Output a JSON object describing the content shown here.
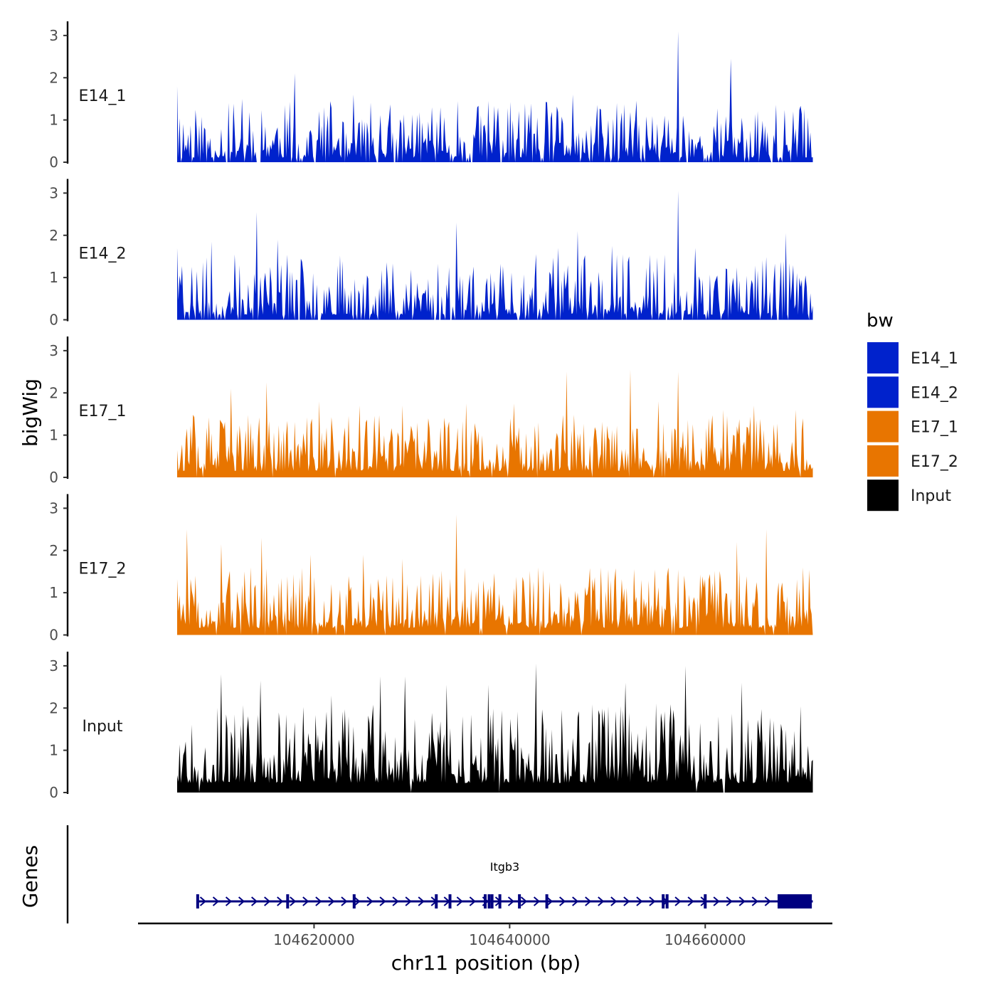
{
  "chart_data": {
    "type": "area",
    "y_axis_title": "bigWig",
    "x_axis_title": "chr11 position (bp)",
    "genes_axis_title": "Genes",
    "xlim": [
      104602000,
      104673000
    ],
    "data_range": [
      104606000,
      104671000
    ],
    "x_ticks": [
      104620000,
      104640000,
      104660000
    ],
    "x_tick_labels": [
      "104620000",
      "104640000",
      "104660000"
    ],
    "ylim": [
      0,
      3.2
    ],
    "y_ticks": [
      0,
      1,
      2,
      3
    ],
    "y_tick_labels": [
      "0",
      "1",
      "2",
      "3"
    ],
    "legend": {
      "title": "bw",
      "entries": [
        {
          "label": "E14_1",
          "color": "#0022cc"
        },
        {
          "label": "E14_2",
          "color": "#0022cc"
        },
        {
          "label": "E17_1",
          "color": "#e87500"
        },
        {
          "label": "E17_2",
          "color": "#e87500"
        },
        {
          "label": "Input",
          "color": "#000000"
        }
      ]
    },
    "tracks": [
      {
        "name": "E14_1",
        "color": "#0022cc",
        "seed": 11,
        "base": 0.35,
        "noise": 0.75,
        "zero_prob": 0.16,
        "peaks": [
          [
            104606000,
            1.8
          ],
          [
            104612700,
            1.5
          ],
          [
            104618000,
            2.1
          ],
          [
            104624000,
            1.6
          ],
          [
            104632000,
            1.3
          ],
          [
            104637800,
            1.45
          ],
          [
            104646500,
            1.6
          ],
          [
            104651000,
            1.4
          ],
          [
            104657200,
            3.1
          ],
          [
            104662600,
            2.45
          ],
          [
            104669000,
            1.2
          ]
        ]
      },
      {
        "name": "E14_2",
        "color": "#0022cc",
        "seed": 23,
        "base": 0.4,
        "noise": 0.8,
        "zero_prob": 0.15,
        "peaks": [
          [
            104606000,
            1.7
          ],
          [
            104609500,
            1.85
          ],
          [
            104614200,
            2.55
          ],
          [
            104616300,
            1.9
          ],
          [
            104634500,
            2.3
          ],
          [
            104645000,
            1.7
          ],
          [
            104647000,
            2.1
          ],
          [
            104650400,
            1.75
          ],
          [
            104657200,
            3.05
          ],
          [
            104659000,
            1.7
          ],
          [
            104668300,
            2.05
          ]
        ]
      },
      {
        "name": "E17_1",
        "color": "#e87500",
        "seed": 37,
        "base": 0.5,
        "noise": 0.75,
        "zero_prob": 0.03,
        "peaks": [
          [
            104611500,
            2.1
          ],
          [
            104615200,
            2.25
          ],
          [
            104620500,
            1.8
          ],
          [
            104624600,
            1.7
          ],
          [
            104629000,
            1.7
          ],
          [
            104635500,
            1.75
          ],
          [
            104640500,
            1.75
          ],
          [
            104645800,
            2.5
          ],
          [
            104652300,
            2.55
          ],
          [
            104655200,
            1.8
          ],
          [
            104657200,
            2.5
          ],
          [
            104661800,
            1.6
          ],
          [
            104665000,
            1.7
          ],
          [
            104669200,
            1.6
          ]
        ]
      },
      {
        "name": "E17_2",
        "color": "#e87500",
        "seed": 51,
        "base": 0.55,
        "noise": 0.8,
        "zero_prob": 0.05,
        "peaks": [
          [
            104607000,
            2.5
          ],
          [
            104610500,
            2.15
          ],
          [
            104614700,
            2.3
          ],
          [
            104619600,
            1.9
          ],
          [
            104625000,
            1.9
          ],
          [
            104629000,
            1.8
          ],
          [
            104634500,
            2.85
          ],
          [
            104643000,
            1.6
          ],
          [
            104649300,
            1.6
          ],
          [
            104654800,
            1.55
          ],
          [
            104663200,
            2.2
          ],
          [
            104666200,
            2.5
          ],
          [
            104670000,
            1.6
          ]
        ]
      },
      {
        "name": "Input",
        "color": "#000000",
        "seed": 67,
        "base": 0.75,
        "noise": 1.05,
        "zero_prob": 0.01,
        "peaks": [
          [
            104610500,
            2.8
          ],
          [
            104614500,
            2.65
          ],
          [
            104621800,
            2.3
          ],
          [
            104626800,
            2.75
          ],
          [
            104629300,
            2.75
          ],
          [
            104633500,
            2.55
          ],
          [
            104637800,
            2.55
          ],
          [
            104642700,
            3.05
          ],
          [
            104651800,
            2.6
          ],
          [
            104658000,
            3.0
          ],
          [
            104663700,
            2.6
          ]
        ]
      }
    ],
    "genes": [
      {
        "name": "Itgb3",
        "start": 104608000,
        "end": 104671000,
        "strand": "+",
        "color": "#000080",
        "exons": [
          104608100,
          104617300,
          104624100,
          104632500,
          104633900,
          104637500,
          104637900,
          104638200,
          104639000,
          104641000,
          104643800,
          104655700,
          104656100,
          104660000
        ],
        "utr_block": [
          104667400,
          104670900
        ]
      }
    ]
  }
}
